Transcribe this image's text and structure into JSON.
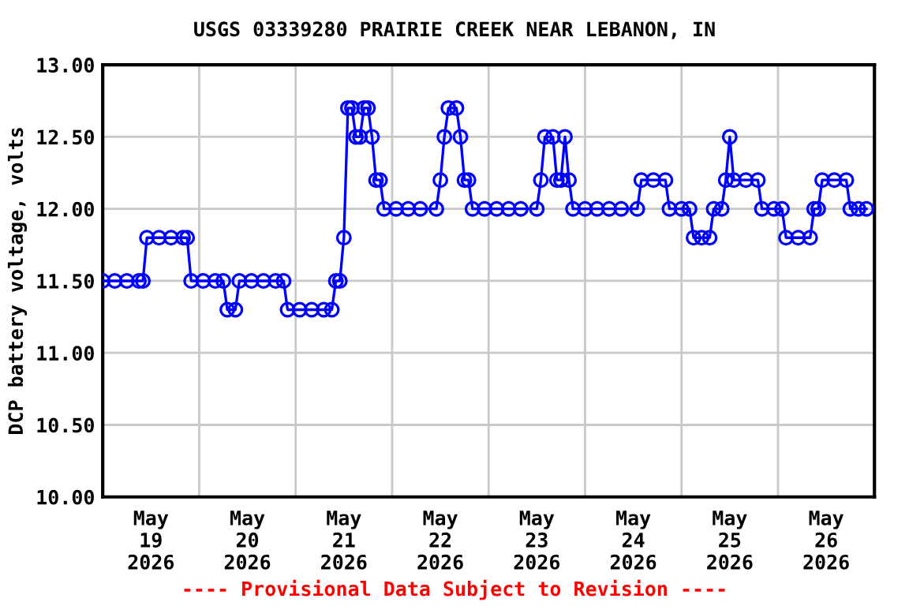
{
  "chart_data": {
    "type": "line",
    "title": "USGS 03339280 PRAIRIE CREEK NEAR LEBANON, IN",
    "ylabel": "DCP battery voltage, volts",
    "annotations": [
      "---- Provisional Data Subject to Revision ----"
    ],
    "x": [
      "2026-05-19T00:00",
      "2026-05-19T03:00",
      "2026-05-19T06:00",
      "2026-05-19T09:00",
      "2026-05-19T10:00",
      "2026-05-19T11:00",
      "2026-05-19T14:00",
      "2026-05-19T17:00",
      "2026-05-19T20:00",
      "2026-05-19T21:00",
      "2026-05-19T22:00",
      "2026-05-20T01:00",
      "2026-05-20T04:00",
      "2026-05-20T06:00",
      "2026-05-20T07:00",
      "2026-05-20T09:00",
      "2026-05-20T10:00",
      "2026-05-20T13:00",
      "2026-05-20T16:00",
      "2026-05-20T19:00",
      "2026-05-20T21:00",
      "2026-05-20T22:00",
      "2026-05-21T01:00",
      "2026-05-21T04:00",
      "2026-05-21T07:00",
      "2026-05-21T09:00",
      "2026-05-21T10:00",
      "2026-05-21T11:00",
      "2026-05-21T12:00",
      "2026-05-21T13:00",
      "2026-05-21T14:00",
      "2026-05-21T15:00",
      "2026-05-21T16:00",
      "2026-05-21T17:00",
      "2026-05-21T18:00",
      "2026-05-21T19:00",
      "2026-05-21T20:00",
      "2026-05-21T21:00",
      "2026-05-21T22:00",
      "2026-05-22T01:00",
      "2026-05-22T04:00",
      "2026-05-22T07:00",
      "2026-05-22T11:00",
      "2026-05-22T12:00",
      "2026-05-22T13:00",
      "2026-05-22T14:00",
      "2026-05-22T16:00",
      "2026-05-22T17:00",
      "2026-05-22T18:00",
      "2026-05-22T19:00",
      "2026-05-22T20:00",
      "2026-05-22T23:00",
      "2026-05-23T02:00",
      "2026-05-23T05:00",
      "2026-05-23T08:00",
      "2026-05-23T12:00",
      "2026-05-23T13:00",
      "2026-05-23T14:00",
      "2026-05-23T16:00",
      "2026-05-23T17:00",
      "2026-05-23T18:00",
      "2026-05-23T19:00",
      "2026-05-23T20:00",
      "2026-05-23T21:00",
      "2026-05-24T00:00",
      "2026-05-24T03:00",
      "2026-05-24T06:00",
      "2026-05-24T09:00",
      "2026-05-24T13:00",
      "2026-05-24T14:00",
      "2026-05-24T17:00",
      "2026-05-24T20:00",
      "2026-05-24T21:00",
      "2026-05-25T00:00",
      "2026-05-25T02:00",
      "2026-05-25T03:00",
      "2026-05-25T05:00",
      "2026-05-25T07:00",
      "2026-05-25T08:00",
      "2026-05-25T10:00",
      "2026-05-25T11:00",
      "2026-05-25T12:00",
      "2026-05-25T13:00",
      "2026-05-25T16:00",
      "2026-05-25T19:00",
      "2026-05-25T20:00",
      "2026-05-25T23:00",
      "2026-05-26T01:00",
      "2026-05-26T02:00",
      "2026-05-26T05:00",
      "2026-05-26T08:00",
      "2026-05-26T09:00",
      "2026-05-26T10:00",
      "2026-05-26T11:00",
      "2026-05-26T14:00",
      "2026-05-26T17:00",
      "2026-05-26T18:00",
      "2026-05-26T20:00",
      "2026-05-26T22:00"
    ],
    "series": [
      {
        "color": "#0000ff",
        "values": [
          11.5,
          11.5,
          11.5,
          11.5,
          11.5,
          11.8,
          11.8,
          11.8,
          11.8,
          11.8,
          11.5,
          11.5,
          11.5,
          11.5,
          11.3,
          11.3,
          11.5,
          11.5,
          11.5,
          11.5,
          11.5,
          11.3,
          11.3,
          11.3,
          11.3,
          11.3,
          11.5,
          11.5,
          11.8,
          12.7,
          12.7,
          12.5,
          12.5,
          12.7,
          12.7,
          12.5,
          12.2,
          12.2,
          12.0,
          12.0,
          12.0,
          12.0,
          12.0,
          12.2,
          12.5,
          12.7,
          12.7,
          12.5,
          12.2,
          12.2,
          12.0,
          12.0,
          12.0,
          12.0,
          12.0,
          12.0,
          12.2,
          12.5,
          12.5,
          12.2,
          12.2,
          12.5,
          12.2,
          12.0,
          12.0,
          12.0,
          12.0,
          12.0,
          12.0,
          12.2,
          12.2,
          12.2,
          12.0,
          12.0,
          12.0,
          11.8,
          11.8,
          11.8,
          12.0,
          12.0,
          12.2,
          12.5,
          12.2,
          12.2,
          12.2,
          12.0,
          12.0,
          12.0,
          11.8,
          11.8,
          11.8,
          12.0,
          12.0,
          12.2,
          12.2,
          12.2,
          12.0,
          12.0,
          12.0
        ]
      }
    ],
    "marker": "circle",
    "line_style": "solid",
    "grid": true,
    "legend": false,
    "xlim": [
      "2026-05-19T00:00",
      "2026-05-27T00:00"
    ],
    "xticks": [
      {
        "value": "2026-05-19T00:00",
        "label": null
      },
      {
        "value": "2026-05-19T12:00",
        "label": "May\n19\n2026"
      },
      {
        "value": "2026-05-20T00:00",
        "label": null
      },
      {
        "value": "2026-05-20T12:00",
        "label": "May\n20\n2026"
      },
      {
        "value": "2026-05-21T00:00",
        "label": null
      },
      {
        "value": "2026-05-21T12:00",
        "label": "May\n21\n2026"
      },
      {
        "value": "2026-05-22T00:00",
        "label": null
      },
      {
        "value": "2026-05-22T12:00",
        "label": "May\n22\n2026"
      },
      {
        "value": "2026-05-23T00:00",
        "label": null
      },
      {
        "value": "2026-05-23T12:00",
        "label": "May\n23\n2026"
      },
      {
        "value": "2026-05-24T00:00",
        "label": null
      },
      {
        "value": "2026-05-24T12:00",
        "label": "May\n24\n2026"
      },
      {
        "value": "2026-05-25T00:00",
        "label": null
      },
      {
        "value": "2026-05-25T12:00",
        "label": "May\n25\n2026"
      },
      {
        "value": "2026-05-26T00:00",
        "label": null
      },
      {
        "value": "2026-05-26T12:00",
        "label": "May\n26\n2026"
      },
      {
        "value": "2026-05-27T00:00",
        "label": null
      }
    ],
    "ylim": [
      10,
      13
    ],
    "yticks": [
      {
        "value": 10,
        "label": "10.00"
      },
      {
        "value": 10.5,
        "label": "10.50"
      },
      {
        "value": 11,
        "label": "11.00"
      },
      {
        "value": 11.5,
        "label": "11.50"
      },
      {
        "value": 12,
        "label": "12.00"
      },
      {
        "value": 12.5,
        "label": "12.50"
      },
      {
        "value": 13,
        "label": "13.00"
      }
    ]
  }
}
